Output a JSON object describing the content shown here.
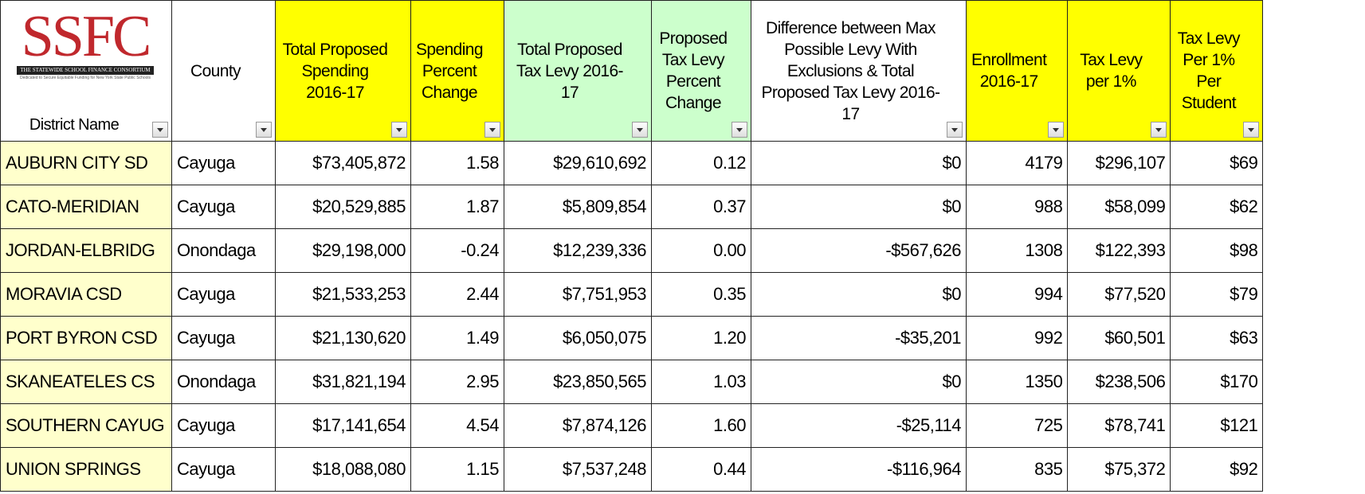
{
  "logo": {
    "title": "SSFC",
    "name": "THE STATEWIDE SCHOOL FINANCE CONSORTIUM",
    "tagline": "Dedicated to Secure Equitable Funding for New York State Public Schools"
  },
  "table": {
    "headers": [
      "District Name",
      "County",
      "Total Proposed Spending 2016-17",
      "Spending Percent Change",
      "Total Proposed Tax Levy 2016-17",
      "Proposed Tax Levy Percent Change",
      "Difference between Max Possible Levy With Exclusions & Total Proposed Tax Levy 2016-17",
      "Enrollment 2016-17",
      "Tax Levy per 1%",
      "Tax Levy Per 1% Per Student"
    ],
    "rows": [
      [
        "AUBURN CITY SD",
        "Cayuga",
        "$73,405,872",
        "1.58",
        "$29,610,692",
        "0.12",
        "$0",
        "4179",
        "$296,107",
        "$69"
      ],
      [
        "CATO-MERIDIAN",
        "Cayuga",
        "$20,529,885",
        "1.87",
        "$5,809,854",
        "0.37",
        "$0",
        "988",
        "$58,099",
        "$62"
      ],
      [
        "JORDAN-ELBRIDG",
        "Onondaga",
        "$29,198,000",
        "-0.24",
        "$12,239,336",
        "0.00",
        "-$567,626",
        "1308",
        "$122,393",
        "$98"
      ],
      [
        "MORAVIA CSD",
        "Cayuga",
        "$21,533,253",
        "2.44",
        "$7,751,953",
        "0.35",
        "$0",
        "994",
        "$77,520",
        "$79"
      ],
      [
        "PORT BYRON CSD",
        "Cayuga",
        "$21,130,620",
        "1.49",
        "$6,050,075",
        "1.20",
        "-$35,201",
        "992",
        "$60,501",
        "$63"
      ],
      [
        "SKANEATELES CS",
        "Onondaga",
        "$31,821,194",
        "2.95",
        "$23,850,565",
        "1.03",
        "$0",
        "1350",
        "$238,506",
        "$170"
      ],
      [
        "SOUTHERN CAYUG",
        "Cayuga",
        "$17,141,654",
        "4.54",
        "$7,874,126",
        "1.60",
        "-$25,114",
        "725",
        "$78,741",
        "$121"
      ],
      [
        "UNION SPRINGS",
        "Cayuga",
        "$18,088,080",
        "1.15",
        "$7,537,248",
        "0.44",
        "-$116,964",
        "835",
        "$75,372",
        "$92"
      ]
    ]
  }
}
